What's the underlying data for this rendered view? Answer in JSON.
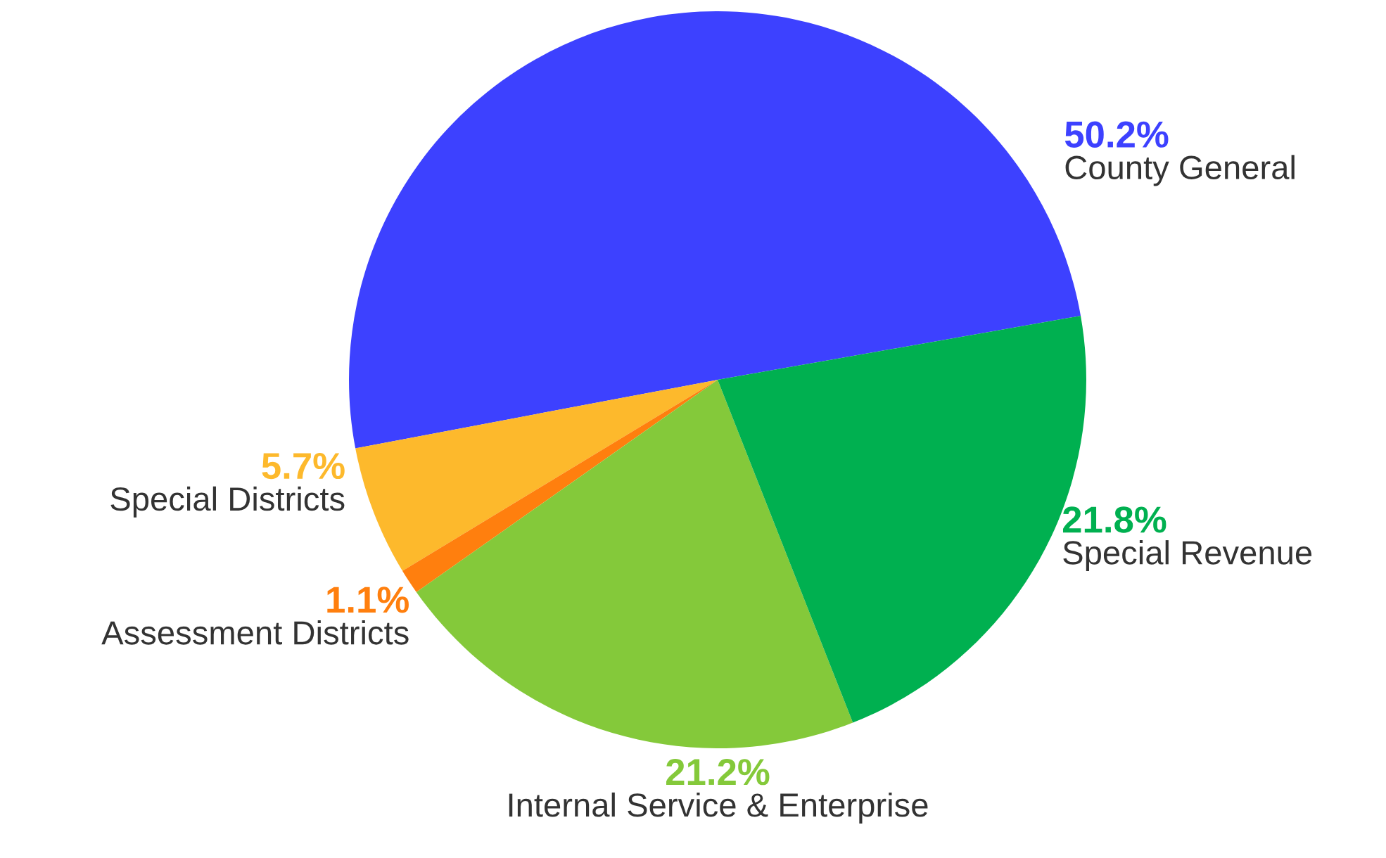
{
  "chart_data": {
    "type": "pie",
    "categories": [
      "County General",
      "Special Districts",
      "Assessment Districts",
      "Internal Service & Enterprise",
      "Special Revenue"
    ],
    "values": [
      50.2,
      5.7,
      1.1,
      21.2,
      21.8
    ],
    "colors": [
      "#3d41ff",
      "#fdb92c",
      "#ff7f0e",
      "#84c93a",
      "#00b050"
    ],
    "value_labels": [
      "50.2%",
      "5.7%",
      "1.1%",
      "21.2%",
      "21.8%"
    ]
  }
}
